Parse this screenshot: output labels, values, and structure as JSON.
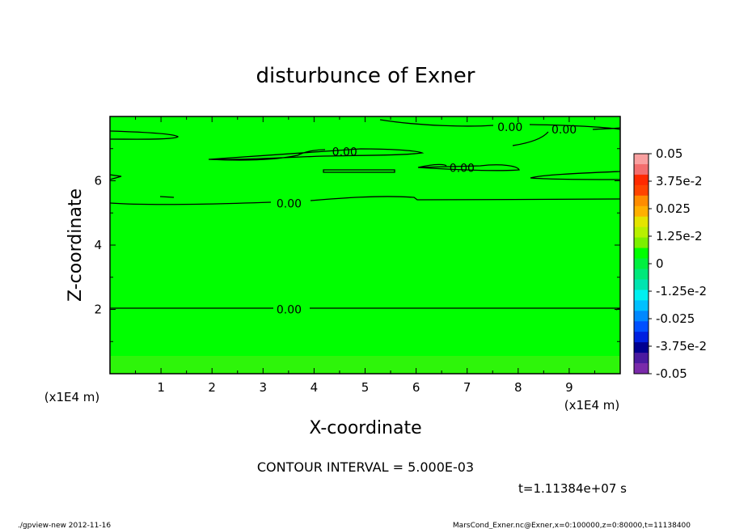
{
  "chart_data": {
    "type": "heatmap",
    "title": "disturbunce of Exner",
    "xlabel": "X-coordinate",
    "ylabel": "Z-coordinate",
    "x_unit": "(x1E4 m)",
    "y_unit": "(x1E4 m)",
    "xlim": [
      0,
      10
    ],
    "ylim": [
      0,
      8
    ],
    "x_ticks": [
      "1",
      "2",
      "3",
      "4",
      "5",
      "6",
      "7",
      "8",
      "9"
    ],
    "y_ticks": [
      "2",
      "4",
      "6"
    ],
    "contour_interval": "CONTOUR INTERVAL = 5.000E-03",
    "contour_labels": [
      {
        "text": "0.00",
        "x": 3.51,
        "z": 2.0
      },
      {
        "text": "0.00",
        "x": 3.51,
        "z": 5.3
      },
      {
        "text": "0.00",
        "x": 4.6,
        "z": 6.9
      },
      {
        "text": "0.00",
        "x": 6.9,
        "z": 6.4
      },
      {
        "text": "0.00",
        "x": 7.84,
        "z": 7.67
      },
      {
        "text": "0.00",
        "x": 8.9,
        "z": 7.6
      }
    ],
    "colorbar": {
      "labels": [
        "0.05",
        "3.75e-2",
        "0.025",
        "1.25e-2",
        "0",
        "-1.25e-2",
        "-0.025",
        "-3.75e-2",
        "-0.05"
      ],
      "levels": [
        0.05,
        0.0375,
        0.025,
        0.0125,
        0,
        -0.0125,
        -0.025,
        -0.0375,
        -0.05
      ],
      "colors": [
        "#f9a0a0",
        "#f36e6e",
        "#ff2a00",
        "#ff4400",
        "#ff8c00",
        "#ffb000",
        "#e4e400",
        "#b8f000",
        "#7cf000",
        "#00ff00",
        "#00f040",
        "#00e87a",
        "#00e4b0",
        "#00f0f0",
        "#00c0ff",
        "#0088ff",
        "#0050ff",
        "#0020e0",
        "#000090",
        "#4a1aa0",
        "#7a2aaa"
      ]
    },
    "field_colors": {
      "main": "#00ff00",
      "bottom": "#2ef50a"
    },
    "time_label": "t=1.11384e+07 s"
  },
  "footer": {
    "left": "./gpview-new 2012-11-16",
    "right": "MarsCond_Exner.nc@Exner,x=0:100000,z=0:80000,t=11138400"
  }
}
